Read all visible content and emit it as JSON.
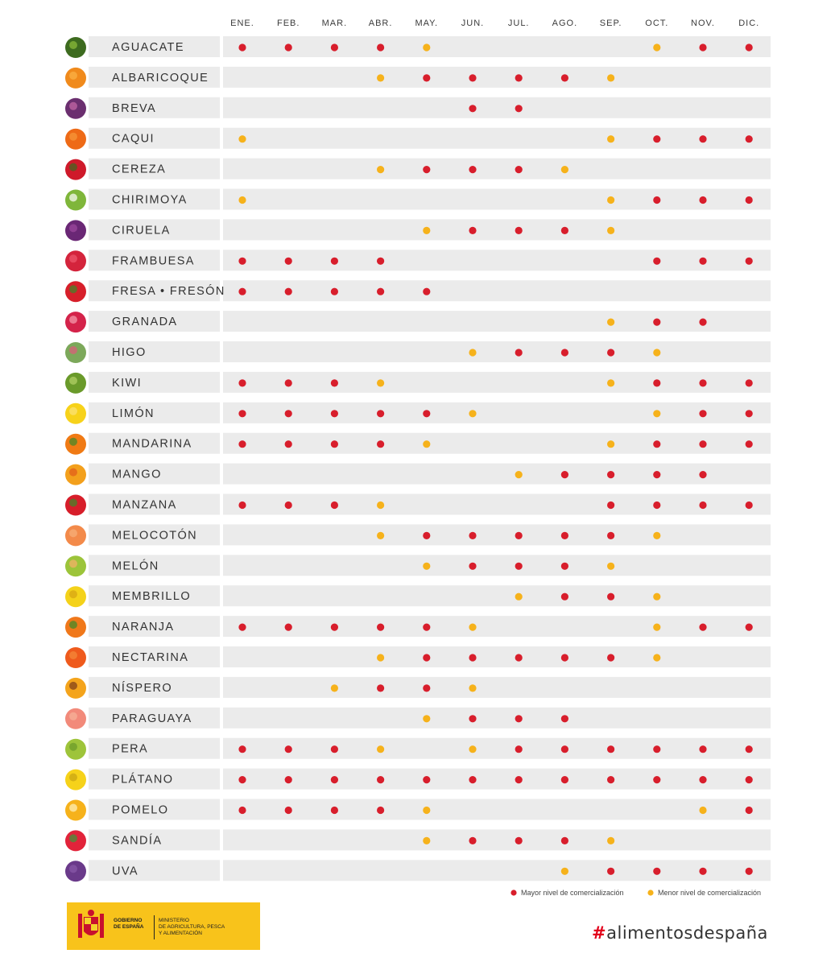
{
  "chart_data": {
    "type": "table",
    "months": [
      "ENE.",
      "FEB.",
      "MAR.",
      "ABR.",
      "MAY.",
      "JUN.",
      "JUL.",
      "AGO.",
      "SEP.",
      "OCT.",
      "NOV.",
      "DIC."
    ],
    "legend": [
      {
        "code": "M",
        "label": "Mayor nivel de comercialización",
        "color": "#d81e2c"
      },
      {
        "code": "m",
        "label": "Menor nivel de comercialización",
        "color": "#f6b21b"
      }
    ],
    "rows": [
      {
        "name": "AGUACATE",
        "icon": "avocado-icon",
        "values": [
          "M",
          "M",
          "M",
          "M",
          "m",
          "",
          "",
          "",
          "",
          "m",
          "M",
          "M"
        ]
      },
      {
        "name": "ALBARICOQUE",
        "icon": "apricot-icon",
        "values": [
          "",
          "",
          "",
          "m",
          "M",
          "M",
          "M",
          "M",
          "m",
          "",
          "",
          ""
        ]
      },
      {
        "name": "BREVA",
        "icon": "early-fig-icon",
        "values": [
          "",
          "",
          "",
          "",
          "",
          "M",
          "M",
          "",
          "",
          "",
          "",
          ""
        ]
      },
      {
        "name": "CAQUI",
        "icon": "persimmon-icon",
        "values": [
          "m",
          "",
          "",
          "",
          "",
          "",
          "",
          "",
          "m",
          "M",
          "M",
          "M"
        ]
      },
      {
        "name": "CEREZA",
        "icon": "cherry-icon",
        "values": [
          "",
          "",
          "",
          "m",
          "M",
          "M",
          "M",
          "m",
          "",
          "",
          "",
          ""
        ]
      },
      {
        "name": "CHIRIMOYA",
        "icon": "custard-apple-icon",
        "values": [
          "m",
          "",
          "",
          "",
          "",
          "",
          "",
          "",
          "m",
          "M",
          "M",
          "M"
        ]
      },
      {
        "name": "CIRUELA",
        "icon": "plum-icon",
        "values": [
          "",
          "",
          "",
          "",
          "m",
          "M",
          "M",
          "M",
          "m",
          "",
          "",
          ""
        ]
      },
      {
        "name": "FRAMBUESA",
        "icon": "raspberry-icon",
        "values": [
          "M",
          "M",
          "M",
          "M",
          "",
          "",
          "",
          "",
          "",
          "M",
          "M",
          "M"
        ]
      },
      {
        "name": "FRESA • FRESÓN",
        "icon": "strawberry-icon",
        "values": [
          "M",
          "M",
          "M",
          "M",
          "M",
          "",
          "",
          "",
          "",
          "",
          "",
          ""
        ]
      },
      {
        "name": "GRANADA",
        "icon": "pomegranate-icon",
        "values": [
          "",
          "",
          "",
          "",
          "",
          "",
          "",
          "",
          "m",
          "M",
          "M",
          ""
        ]
      },
      {
        "name": "HIGO",
        "icon": "fig-icon",
        "values": [
          "",
          "",
          "",
          "",
          "",
          "m",
          "M",
          "M",
          "M",
          "m",
          "",
          ""
        ]
      },
      {
        "name": "KIWI",
        "icon": "kiwi-icon",
        "values": [
          "M",
          "M",
          "M",
          "m",
          "",
          "",
          "",
          "",
          "m",
          "M",
          "M",
          "M"
        ]
      },
      {
        "name": "LIMÓN",
        "icon": "lemon-icon",
        "values": [
          "M",
          "M",
          "M",
          "M",
          "M",
          "m",
          "",
          "",
          "",
          "m",
          "M",
          "M"
        ]
      },
      {
        "name": "MANDARINA",
        "icon": "mandarin-icon",
        "values": [
          "M",
          "M",
          "M",
          "M",
          "m",
          "",
          "",
          "",
          "m",
          "M",
          "M",
          "M"
        ]
      },
      {
        "name": "MANGO",
        "icon": "mango-icon",
        "values": [
          "",
          "",
          "",
          "",
          "",
          "",
          "m",
          "M",
          "M",
          "M",
          "M",
          ""
        ]
      },
      {
        "name": "MANZANA",
        "icon": "apple-icon",
        "values": [
          "M",
          "M",
          "M",
          "m",
          "",
          "",
          "",
          "",
          "M",
          "M",
          "M",
          "M"
        ]
      },
      {
        "name": "MELOCOTÓN",
        "icon": "peach-icon",
        "values": [
          "",
          "",
          "",
          "m",
          "M",
          "M",
          "M",
          "M",
          "M",
          "m",
          "",
          ""
        ]
      },
      {
        "name": "MELÓN",
        "icon": "melon-icon",
        "values": [
          "",
          "",
          "",
          "",
          "m",
          "M",
          "M",
          "M",
          "m",
          "",
          "",
          ""
        ]
      },
      {
        "name": "MEMBRILLO",
        "icon": "quince-icon",
        "values": [
          "",
          "",
          "",
          "",
          "",
          "",
          "m",
          "M",
          "M",
          "m",
          "",
          ""
        ]
      },
      {
        "name": "NARANJA",
        "icon": "orange-icon",
        "values": [
          "M",
          "M",
          "M",
          "M",
          "M",
          "m",
          "",
          "",
          "",
          "m",
          "M",
          "M"
        ]
      },
      {
        "name": "NECTARINA",
        "icon": "nectarine-icon",
        "values": [
          "",
          "",
          "",
          "m",
          "M",
          "M",
          "M",
          "M",
          "M",
          "m",
          "",
          ""
        ]
      },
      {
        "name": "NÍSPERO",
        "icon": "loquat-icon",
        "values": [
          "",
          "",
          "m",
          "M",
          "M",
          "m",
          "",
          "",
          "",
          "",
          "",
          ""
        ]
      },
      {
        "name": "PARAGUAYA",
        "icon": "flat-peach-icon",
        "values": [
          "",
          "",
          "",
          "",
          "m",
          "M",
          "M",
          "M",
          "",
          "",
          "",
          ""
        ]
      },
      {
        "name": "PERA",
        "icon": "pear-icon",
        "values": [
          "M",
          "M",
          "M",
          "m",
          "",
          "m",
          "M",
          "M",
          "M",
          "M",
          "M",
          "M"
        ]
      },
      {
        "name": "PLÁTANO",
        "icon": "banana-icon",
        "values": [
          "M",
          "M",
          "M",
          "M",
          "M",
          "M",
          "M",
          "M",
          "M",
          "M",
          "M",
          "M"
        ]
      },
      {
        "name": "POMELO",
        "icon": "grapefruit-icon",
        "values": [
          "M",
          "M",
          "M",
          "M",
          "m",
          "",
          "",
          "",
          "",
          "",
          "m",
          "M"
        ]
      },
      {
        "name": "SANDÍA",
        "icon": "watermelon-icon",
        "values": [
          "",
          "",
          "",
          "",
          "m",
          "M",
          "M",
          "M",
          "m",
          "",
          "",
          ""
        ]
      },
      {
        "name": "UVA",
        "icon": "grapes-icon",
        "values": [
          "",
          "",
          "",
          "",
          "",
          "",
          "",
          "m",
          "M",
          "M",
          "M",
          "M"
        ]
      }
    ],
    "colors": {
      "major": "#d81e2c",
      "minor": "#f6b21b",
      "row_band": "#ebebeb"
    }
  },
  "footer": {
    "gov_line1": "GOBIERNO",
    "gov_line2": "DE ESPAÑA",
    "ministry_line1": "MINISTERIO",
    "ministry_line2": "DE AGRICULTURA, PESCA",
    "ministry_line3": "Y ALIMENTACIÓN",
    "hashtag_symbol": "#",
    "hashtag_text": "alimentosdespaña",
    "logo_color": "#f8c31b"
  }
}
